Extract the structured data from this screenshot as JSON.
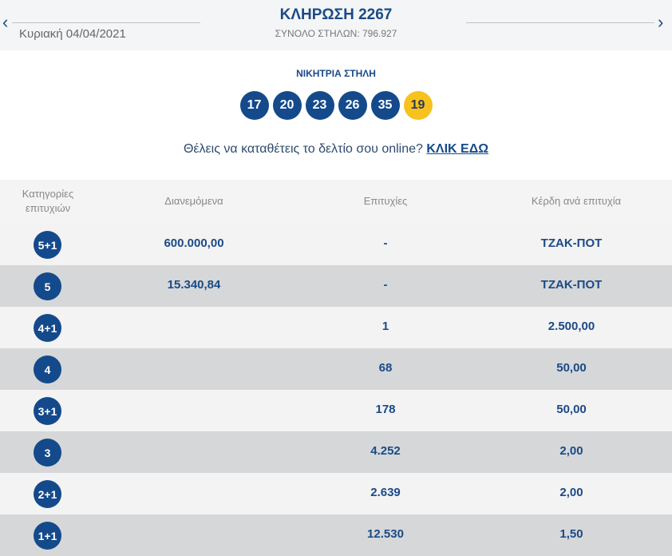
{
  "header": {
    "title": "ΚΛΗΡΩΣΗ 2267",
    "date": "Κυριακή 04/04/2021",
    "total": "ΣΥΝΟΛΟ ΣΤΗΛΩΝ: 796.927",
    "prev": "‹",
    "next": "›"
  },
  "winning": {
    "label": "ΝΙΚΗΤΡΙΑ ΣΤΗΛΗ",
    "numbers": [
      "17",
      "20",
      "23",
      "26",
      "35"
    ],
    "joker": "19"
  },
  "promo": {
    "text": "Θέλεις να καταθέτεις το δελτίο σου online? ",
    "link": "ΚΛΙΚ ΕΔΩ"
  },
  "colors": {
    "navy": "#144a8b",
    "joker": "#f7c21d"
  },
  "table": {
    "headers": [
      "Κατηγορίες επιτυχιών",
      "Διανεμόμενα",
      "Επιτυχίες",
      "Κέρδη ανά επιτυχία"
    ],
    "rows": [
      {
        "cat": "5+1",
        "dist": "600.000,00",
        "wins": "-",
        "prize": "ΤΖΑΚ-ΠΟΤ"
      },
      {
        "cat": "5",
        "dist": "15.340,84",
        "wins": "-",
        "prize": "ΤΖΑΚ-ΠΟΤ"
      },
      {
        "cat": "4+1",
        "dist": "",
        "wins": "1",
        "prize": "2.500,00"
      },
      {
        "cat": "4",
        "dist": "",
        "wins": "68",
        "prize": "50,00"
      },
      {
        "cat": "3+1",
        "dist": "",
        "wins": "178",
        "prize": "50,00"
      },
      {
        "cat": "3",
        "dist": "",
        "wins": "4.252",
        "prize": "2,00"
      },
      {
        "cat": "2+1",
        "dist": "",
        "wins": "2.639",
        "prize": "2,00"
      },
      {
        "cat": "1+1",
        "dist": "",
        "wins": "12.530",
        "prize": "1,50"
      }
    ]
  }
}
